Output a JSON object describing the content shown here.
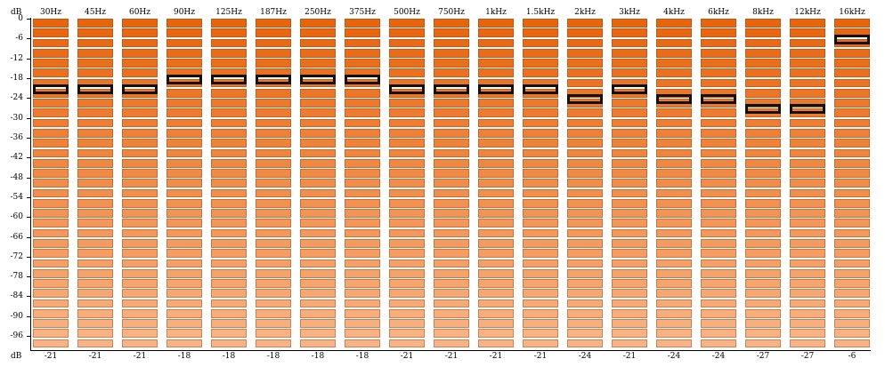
{
  "axis": {
    "unit_label": "dB",
    "ticks": [
      "0",
      "-6",
      "-12",
      "-18",
      "-24",
      "-30",
      "-36",
      "-42",
      "-48",
      "-54",
      "-60",
      "-66",
      "-72",
      "-78",
      "-84",
      "-90",
      "-96"
    ],
    "bottom_label": "dB",
    "min": -100,
    "max": 0,
    "step": 3
  },
  "colors": {
    "top": "#e8650e",
    "bottom": "#f8b487",
    "handle": "#111111"
  },
  "bands": [
    {
      "label": "30Hz",
      "value": -21,
      "value_label": "-21"
    },
    {
      "label": "45Hz",
      "value": -21,
      "value_label": "-21"
    },
    {
      "label": "60Hz",
      "value": -21,
      "value_label": "-21"
    },
    {
      "label": "90Hz",
      "value": -18,
      "value_label": "-18"
    },
    {
      "label": "125Hz",
      "value": -18,
      "value_label": "-18"
    },
    {
      "label": "187Hz",
      "value": -18,
      "value_label": "-18"
    },
    {
      "label": "250Hz",
      "value": -18,
      "value_label": "-18"
    },
    {
      "label": "375Hz",
      "value": -18,
      "value_label": "-18"
    },
    {
      "label": "500Hz",
      "value": -21,
      "value_label": "-21"
    },
    {
      "label": "750Hz",
      "value": -21,
      "value_label": "-21"
    },
    {
      "label": "1kHz",
      "value": -21,
      "value_label": "-21"
    },
    {
      "label": "1.5kHz",
      "value": -21,
      "value_label": "-21"
    },
    {
      "label": "2kHz",
      "value": -24,
      "value_label": "-24"
    },
    {
      "label": "3kHz",
      "value": -21,
      "value_label": "-21"
    },
    {
      "label": "4kHz",
      "value": -24,
      "value_label": "-24"
    },
    {
      "label": "6kHz",
      "value": -24,
      "value_label": "-24"
    },
    {
      "label": "8kHz",
      "value": -27,
      "value_label": "-27"
    },
    {
      "label": "12kHz",
      "value": -27,
      "value_label": "-27"
    },
    {
      "label": "16kHz",
      "value": -6,
      "value_label": "-6"
    }
  ]
}
